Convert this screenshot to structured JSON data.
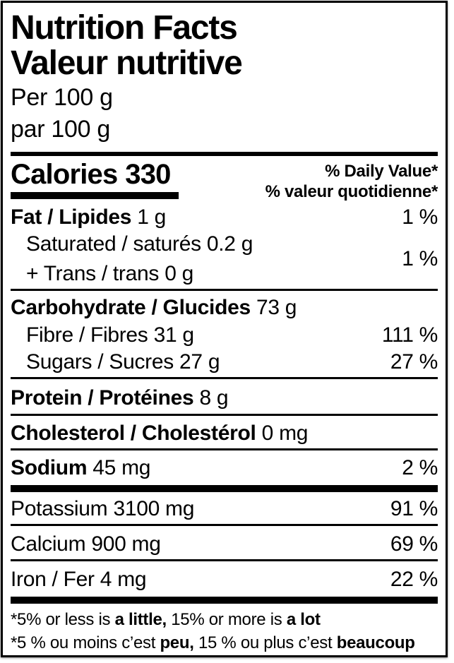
{
  "header": {
    "title_en": "Nutrition Facts",
    "title_fr": "Valeur nutritive",
    "serving_en": "Per 100 g",
    "serving_fr": "par 100 g"
  },
  "calories": {
    "label": "Calories",
    "value": "330",
    "dv_header_en": "% Daily Value*",
    "dv_header_fr": "% valeur quotidienne*"
  },
  "rows": [
    {
      "label": "Fat / Lipides",
      "amount": "1 g",
      "dv": "1 %"
    },
    {
      "label": "Saturated / saturés",
      "amount": "0.2 g"
    },
    {
      "label": "+ Trans / trans",
      "amount": "0 g",
      "dv": "1 %"
    },
    {
      "label": "Carbohydrate / Glucides",
      "amount": "73 g",
      "dv": ""
    },
    {
      "label": "Fibre / Fibres",
      "amount": "31 g",
      "dv": "111 %"
    },
    {
      "label": "Sugars / Sucres",
      "amount": "27 g",
      "dv": "27 %"
    },
    {
      "label": "Protein / Protéines",
      "amount": "8 g",
      "dv": ""
    },
    {
      "label": "Cholesterol / Cholestérol",
      "amount": "0 mg",
      "dv": ""
    },
    {
      "label": "Sodium",
      "amount": "45 mg",
      "dv": "2 %"
    },
    {
      "label": "Potassium",
      "amount": "3100 mg",
      "dv": "91 %"
    },
    {
      "label": "Calcium",
      "amount": "900 mg",
      "dv": "69 %"
    },
    {
      "label": "Iron / Fer",
      "amount": "4 mg",
      "dv": "22 %"
    }
  ],
  "footnote_en": [
    {
      "text": "*5% or less is "
    },
    {
      "text": "a little,",
      "bold": true
    },
    {
      "text": " 15% or more is "
    },
    {
      "text": "a lot",
      "bold": true
    }
  ],
  "footnote_fr": [
    {
      "text": "*5 % ou moins c’est "
    },
    {
      "text": "peu,",
      "bold": true
    },
    {
      "text": " 15 % ou plus c’est "
    },
    {
      "text": "beaucoup",
      "bold": true
    }
  ],
  "colors": {
    "text": "#000000",
    "background": "#ffffff",
    "border": "#000000"
  }
}
